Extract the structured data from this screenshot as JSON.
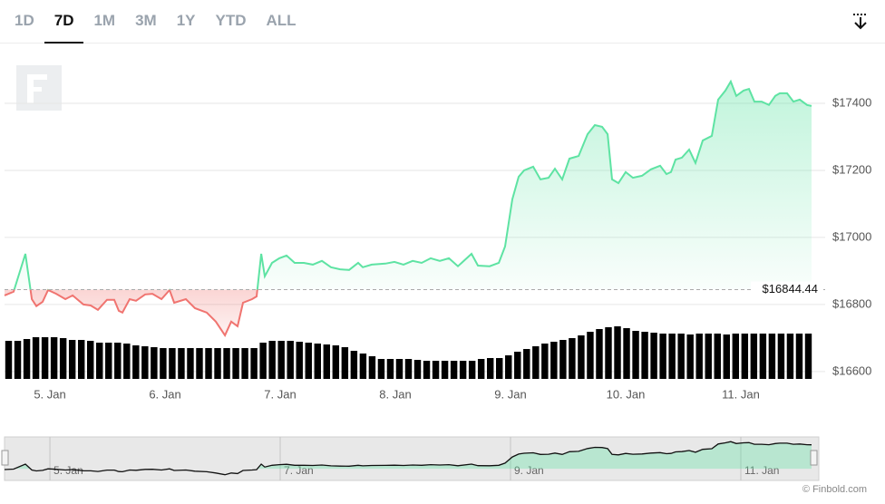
{
  "range_buttons": {
    "items": [
      "1D",
      "7D",
      "1M",
      "3M",
      "1Y",
      "YTD",
      "ALL"
    ],
    "active": 1
  },
  "chart_data": {
    "type": "line",
    "x": [
      4.606,
      4.685,
      4.787,
      4.843,
      4.882,
      4.937,
      4.984,
      5.055,
      5.134,
      5.197,
      5.291,
      5.354,
      5.417,
      5.496,
      5.559,
      5.598,
      5.63,
      5.693,
      5.748,
      5.827,
      5.89,
      5.969,
      6.039,
      6.079,
      6.181,
      6.26,
      6.362,
      6.441,
      6.52,
      6.575,
      6.63,
      6.677,
      6.756,
      6.795,
      6.835,
      6.866,
      6.929,
      6.992,
      7.055,
      7.126,
      7.205,
      7.283,
      7.362,
      7.441,
      7.52,
      7.598,
      7.677,
      7.717,
      7.795,
      7.913,
      7.992,
      8.071,
      8.15,
      8.228,
      8.307,
      8.386,
      8.465,
      8.543,
      8.661,
      8.717,
      8.819,
      8.898,
      8.953,
      9.016,
      9.071,
      9.118,
      9.197,
      9.26,
      9.331,
      9.386,
      9.449,
      9.512,
      9.591,
      9.669,
      9.732,
      9.795,
      9.843,
      9.882,
      9.937,
      10.0,
      10.063,
      10.142,
      10.22,
      10.299,
      10.354,
      10.394,
      10.433,
      10.488,
      10.551,
      10.606,
      10.669,
      10.748,
      10.803,
      10.866,
      10.913,
      10.961,
      11.024,
      11.071,
      11.118,
      11.181,
      11.244,
      11.299,
      11.339,
      11.402,
      11.457,
      11.512,
      11.575,
      11.614
    ],
    "values": [
      16827,
      16838,
      16951,
      16816,
      16795,
      16808,
      16843,
      16832,
      16816,
      16827,
      16800,
      16797,
      16784,
      16814,
      16814,
      16781,
      16776,
      16816,
      16811,
      16830,
      16832,
      16816,
      16843,
      16805,
      16816,
      16789,
      16776,
      16749,
      16708,
      16749,
      16735,
      16805,
      16816,
      16824,
      16951,
      16884,
      16924,
      16938,
      16946,
      16924,
      16924,
      16919,
      16930,
      16911,
      16905,
      16903,
      16924,
      16911,
      16919,
      16922,
      16927,
      16919,
      16930,
      16924,
      16938,
      16930,
      16938,
      16914,
      16951,
      16916,
      16914,
      16924,
      16973,
      17114,
      17181,
      17200,
      17211,
      17173,
      17178,
      17205,
      17173,
      17235,
      17243,
      17308,
      17335,
      17330,
      17308,
      17173,
      17162,
      17195,
      17178,
      17184,
      17203,
      17214,
      17189,
      17195,
      17232,
      17238,
      17262,
      17222,
      17289,
      17303,
      17411,
      17438,
      17465,
      17422,
      17438,
      17443,
      17405,
      17405,
      17395,
      17422,
      17430,
      17430,
      17405,
      17411,
      17395,
      17392
    ],
    "up_color": "#5ee3a3",
    "down_color": "#f07470",
    "reference": {
      "value": 16844.44,
      "label": "$16844.44"
    },
    "xlim": [
      4.606,
      11.63
    ],
    "ylim": [
      16578,
      17573
    ],
    "yticks": [
      {
        "value": 16600,
        "label": "$16600"
      },
      {
        "value": 16800,
        "label": "$16800"
      },
      {
        "value": 17000,
        "label": "$17000"
      },
      {
        "value": 17200,
        "label": "$17200"
      },
      {
        "value": 17400,
        "label": "$17400"
      }
    ],
    "xticks": [
      {
        "value": 5,
        "label": "5. Jan"
      },
      {
        "value": 6,
        "label": "6. Jan"
      },
      {
        "value": 7,
        "label": "7. Jan"
      },
      {
        "value": 8,
        "label": "8. Jan"
      },
      {
        "value": 9,
        "label": "9. Jan"
      },
      {
        "value": 10,
        "label": "10. Jan"
      },
      {
        "value": 11,
        "label": "11. Jan"
      }
    ],
    "grid": true,
    "volume": {
      "axis": "y2",
      "color": "#000000",
      "values": [
        42,
        42,
        44,
        46,
        46,
        46,
        45,
        43,
        43,
        42,
        40,
        40,
        40,
        39,
        37,
        36,
        35,
        34,
        34,
        34,
        34,
        34,
        34,
        34,
        34,
        34,
        34,
        34,
        40,
        42,
        42,
        42,
        41,
        40,
        39,
        38,
        37,
        35,
        31,
        28,
        25,
        22,
        22,
        22,
        22,
        21,
        20,
        20,
        20,
        20,
        20,
        20,
        22,
        23,
        23,
        26,
        30,
        33,
        36,
        39,
        41,
        43,
        45,
        48,
        52,
        55,
        57,
        58,
        56,
        53,
        52,
        51,
        50,
        50,
        50,
        49,
        50,
        50,
        50,
        49,
        50,
        50,
        50,
        50,
        50,
        50,
        50,
        50,
        50
      ]
    },
    "y2lim": [
      0,
      70
    ],
    "navigator_xticks": [
      {
        "value": 5,
        "label": "5. Jan"
      },
      {
        "value": 7,
        "label": "7. Jan"
      },
      {
        "value": 9,
        "label": "9. Jan"
      },
      {
        "value": 11,
        "label": "11. Jan"
      }
    ]
  },
  "credit": "© Finbold.com"
}
